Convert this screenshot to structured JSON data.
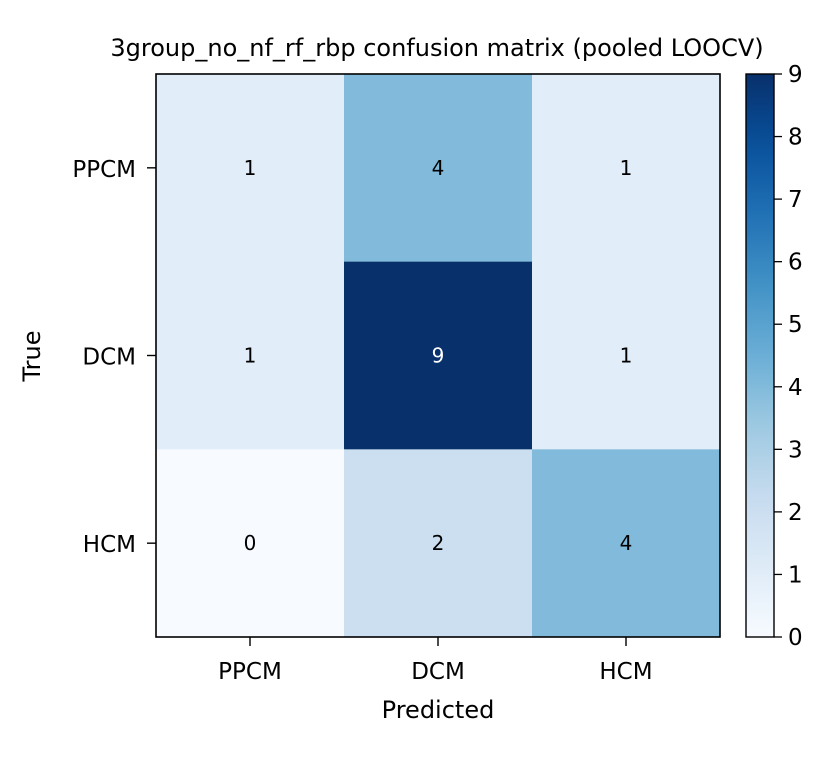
{
  "chart_data": {
    "type": "heatmap",
    "title": "3group_no_nf_rf_rbp confusion matrix (pooled LOOCV)",
    "xlabel": "Predicted",
    "ylabel": "True",
    "x_categories": [
      "PPCM",
      "DCM",
      "HCM"
    ],
    "y_categories": [
      "PPCM",
      "DCM",
      "HCM"
    ],
    "values": [
      [
        1,
        4,
        1
      ],
      [
        1,
        9,
        1
      ],
      [
        0,
        2,
        4
      ]
    ],
    "colormap": "Blues",
    "colorbar": {
      "min": 0,
      "max": 9,
      "ticks": [
        0,
        1,
        2,
        3,
        4,
        5,
        6,
        7,
        8,
        9
      ]
    },
    "grid": false
  }
}
